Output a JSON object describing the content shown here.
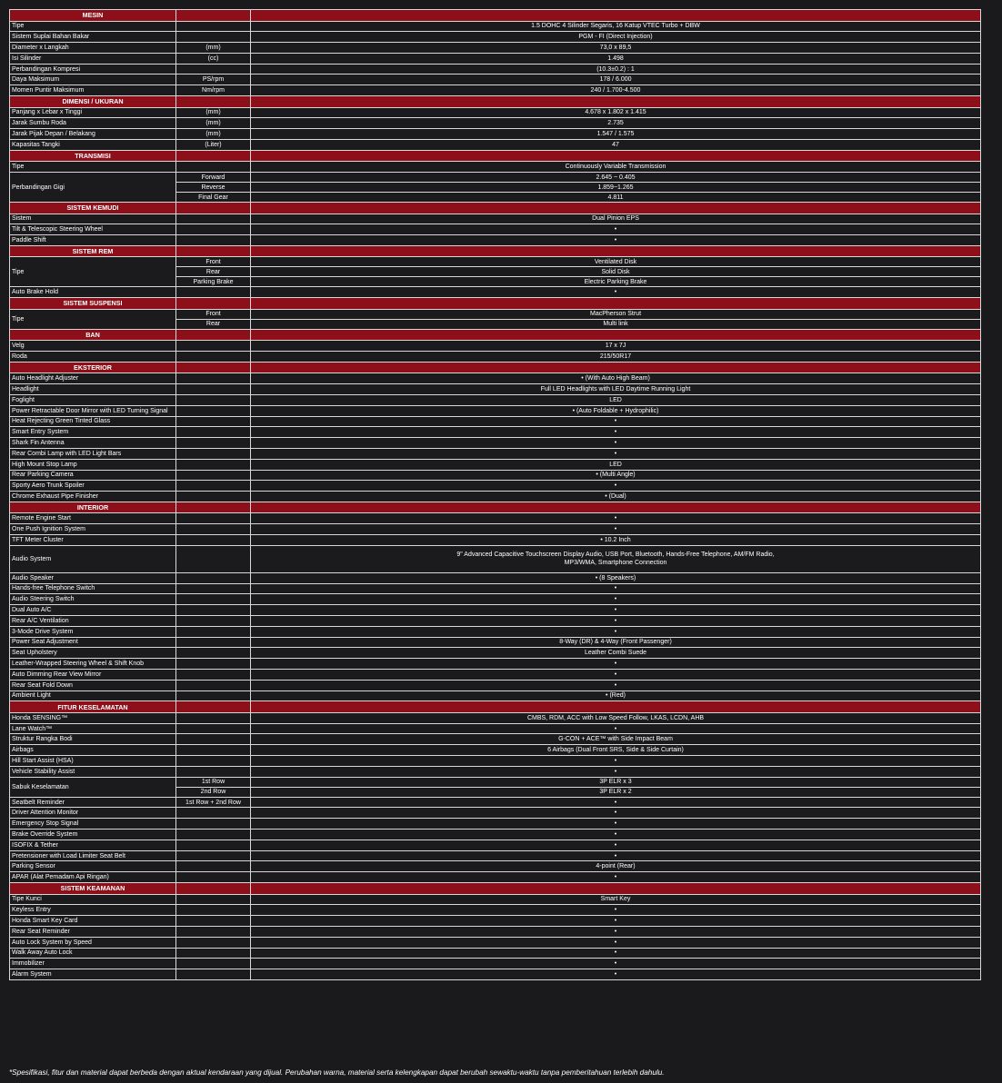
{
  "colors": {
    "section_bg": "#8c0f19",
    "row_bg": "#1b1b1d",
    "border": "#d8d8d8"
  },
  "sections": [
    {
      "title": "MESIN",
      "rows": [
        [
          "Tipe",
          "",
          "1.5 DOHC 4 Silinder Segaris, 16 Katup VTEC Turbo + DBW"
        ],
        [
          "Sistem Suplai Bahan Bakar",
          "",
          "PGM - FI (Direct Injection)"
        ],
        [
          "Diameter x Langkah",
          "(mm)",
          "73,0 x 89,5"
        ],
        [
          "Isi Silinder",
          "(cc)",
          "1.498"
        ],
        [
          "Perbandingan Kompresi",
          "",
          "(10.3±0.2) : 1"
        ],
        [
          "Daya Maksimum",
          "PS/rpm",
          "178 / 6.000"
        ],
        [
          "Momen Puntir Maksimum",
          "Nm/rpm",
          "240 / 1.700-4.500"
        ]
      ]
    },
    {
      "title": "DIMENSI / UKURAN",
      "rows": [
        [
          "Panjang x Lebar x Tinggi",
          "(mm)",
          "4.678 x 1.802 x 1.415"
        ],
        [
          "Jarak Sumbu Roda",
          "(mm)",
          "2.735"
        ],
        [
          "Jarak Pijak Depan / Belakang",
          "(mm)",
          "1.547 / 1.575"
        ],
        [
          "Kapasitas Tangki",
          "(Liter)",
          "47"
        ]
      ]
    },
    {
      "title": "TRANSMISI",
      "rows": [
        [
          "Tipe",
          "",
          "Continuously Variable Transmission"
        ],
        [
          "Perbandingan Gigi",
          "Forward",
          "2.645 ~ 0.405",
          3
        ],
        [
          null,
          "Reverse",
          "1.859~1.265"
        ],
        [
          null,
          "Final Gear",
          "4.811"
        ]
      ]
    },
    {
      "title": "SISTEM KEMUDI",
      "rows": [
        [
          "Sistem",
          "",
          "Dual Pinion EPS"
        ],
        [
          "Tilt & Telescopic Steering Wheel",
          "",
          "•"
        ],
        [
          "Paddle Shift",
          "",
          "•"
        ]
      ]
    },
    {
      "title": "SISTEM REM",
      "rows": [
        [
          "Tipe",
          "Front",
          "Ventilated Disk",
          3
        ],
        [
          null,
          "Rear",
          "Solid Disk"
        ],
        [
          null,
          "Parking Brake",
          "Electric Parking Brake"
        ],
        [
          "Auto Brake Hold",
          "",
          "•"
        ]
      ]
    },
    {
      "title": "SISTEM SUSPENSI",
      "rows": [
        [
          "Tipe",
          "Front",
          "MacPherson Strut",
          2
        ],
        [
          null,
          "Rear",
          "Multi link"
        ]
      ]
    },
    {
      "title": "BAN",
      "rows": [
        [
          "Velg",
          "",
          "17 x 7J"
        ],
        [
          "Roda",
          "",
          "215/50R17"
        ]
      ]
    },
    {
      "title": "EKSTERIOR",
      "rows": [
        [
          "Auto Headlight Adjuster",
          "",
          "• (With Auto High Beam)"
        ],
        [
          "Headlight",
          "",
          "Full LED Headlights with LED Daytime Running Light"
        ],
        [
          "Foglight",
          "",
          "LED"
        ],
        [
          "Power Retractable Door Mirror with LED Turning Signal",
          "",
          "• (Auto Foldable + Hydrophilic)"
        ],
        [
          "Heat Rejecting Green Tinted Glass",
          "",
          "•"
        ],
        [
          "Smart Entry System",
          "",
          "•"
        ],
        [
          "Shark Fin Antenna",
          "",
          "•"
        ],
        [
          "Rear Combi Lamp with LED Light Bars",
          "",
          "•"
        ],
        [
          "High Mount Stop Lamp",
          "",
          "LED"
        ],
        [
          "Rear Parking Camera",
          "",
          "• (Multi Angle)"
        ],
        [
          "Sporty Aero Trunk Spoiler",
          "",
          "•"
        ],
        [
          "Chrome Exhaust Pipe Finisher",
          "",
          "• (Dual)"
        ]
      ]
    },
    {
      "title": "INTERIOR",
      "rows": [
        [
          "Remote Engine Start",
          "",
          "•"
        ],
        [
          "One Push Ignition System",
          "",
          "•"
        ],
        [
          "TFT Meter Cluster",
          "",
          "• 10.2 Inch"
        ],
        [
          "Audio System",
          "",
          "9\" Advanced Capacitive Touchscreen Display Audio, USB Port, Bluetooth, Hands-Free Telephone, AM/FM Radio, MP3/WMA, Smartphone Connection"
        ],
        [
          "Audio Speaker",
          "",
          "• (8 Speakers)"
        ],
        [
          "Hands-free Telephone Switch",
          "",
          "•"
        ],
        [
          "Audio Steering Switch",
          "",
          "•"
        ],
        [
          "Dual Auto A/C",
          "",
          "•"
        ],
        [
          "Rear A/C Ventilation",
          "",
          "•"
        ],
        [
          "3-Mode Drive System",
          "",
          "•"
        ],
        [
          "Power Seat Adjustment",
          "",
          "8-Way (DR) & 4-Way (Front Passenger)"
        ],
        [
          "Seat Upholstery",
          "",
          "Leather Combi Suede"
        ],
        [
          "Leather-Wrapped Steering Wheel & Shift Knob",
          "",
          "•"
        ],
        [
          "Auto Dimming Rear View Mirror",
          "",
          "•"
        ],
        [
          "Rear Seat Fold Down",
          "",
          "•"
        ],
        [
          "Ambient Light",
          "",
          "• (Red)"
        ]
      ]
    },
    {
      "title": "FITUR KESELAMATAN",
      "rows": [
        [
          "Honda SENSING™",
          "",
          "CMBS, RDM, ACC with Low Speed Follow, LKAS, LCDN, AHB"
        ],
        [
          "Lane Watch™",
          "",
          "•"
        ],
        [
          "Struktur Rangka Bodi",
          "",
          "G-CON + ACE™ with Side Impact Beam"
        ],
        [
          "Airbags",
          "",
          "6 Airbags (Dual Front SRS, Side & Side Curtain)"
        ],
        [
          "Hill Start Assist (HSA)",
          "",
          "•"
        ],
        [
          "Vehicle Stability Assist",
          "",
          "•"
        ],
        [
          "Sabuk Keselamatan",
          "1st Row",
          "3P ELR x 3",
          2
        ],
        [
          null,
          "2nd Row",
          "3P ELR x 2"
        ],
        [
          "Seatbelt Reminder",
          "1st Row + 2nd Row",
          "•"
        ],
        [
          "Driver Attention Monitor",
          "",
          "•"
        ],
        [
          "Emergency Stop Signal",
          "",
          "•"
        ],
        [
          "Brake Override System",
          "",
          "•"
        ],
        [
          "ISOFIX & Tether",
          "",
          "•"
        ],
        [
          "Pretensioner with Load Limiter Seat Belt",
          "",
          "•"
        ],
        [
          "Parking Sensor",
          "",
          "4-point (Rear)"
        ],
        [
          "APAR (Alat Pemadam Api Ringan)",
          "",
          "•"
        ]
      ]
    },
    {
      "title": "SISTEM KEAMANAN",
      "rows": [
        [
          "Tipe Kunci",
          "",
          "Smart Key"
        ],
        [
          "Keyless Entry",
          "",
          "•"
        ],
        [
          "Honda Smart Key Card",
          "",
          "•"
        ],
        [
          "Rear Seat Reminder",
          "",
          "•"
        ],
        [
          "Auto Lock System by Speed",
          "",
          "•"
        ],
        [
          "Walk Away Auto Lock",
          "",
          "•"
        ],
        [
          "Immobilizer",
          "",
          "•"
        ],
        [
          "Alarm System",
          "",
          "•"
        ]
      ]
    }
  ],
  "footer": {
    "disclaimer": "*Spesifikasi, fitur dan material dapat berbeda dengan aktual kendaraan yang dijual. Perubahan warna, material serta kelengkapan dapat berubah sewaktu-waktu tanpa pemberitahuan terlebih dahulu."
  }
}
